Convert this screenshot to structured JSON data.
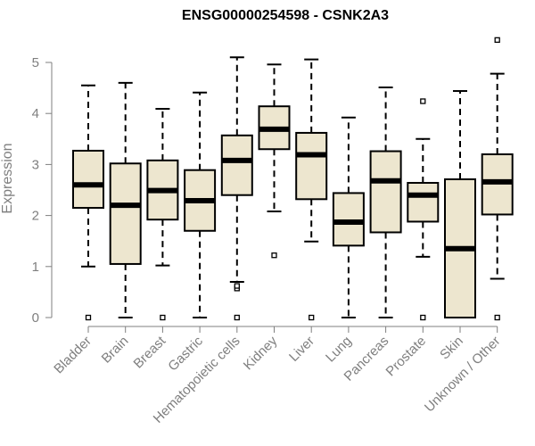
{
  "chart_data": {
    "type": "boxplot",
    "title": "ENSG00000254598 - CSNK2A3",
    "ylabel": "Expression",
    "xlabel": "",
    "ylim": [
      0,
      5.5
    ],
    "yticks": [
      0,
      1,
      2,
      3,
      4,
      5
    ],
    "box_fill": "#ede6cf",
    "box_stroke": "#000000",
    "categories": [
      "Bladder",
      "Brain",
      "Breast",
      "Gastric",
      "Hematopoietic cells",
      "Kidney",
      "Liver",
      "Lung",
      "Pancreas",
      "Prostate",
      "Skin",
      "Unknown / Other"
    ],
    "boxes": [
      {
        "whisker_low": 1.0,
        "q1": 2.15,
        "median": 2.6,
        "q3": 3.27,
        "whisker_high": 4.55,
        "outliers": [
          0
        ]
      },
      {
        "whisker_low": 0,
        "q1": 1.05,
        "median": 2.2,
        "q3": 3.02,
        "whisker_high": 4.6,
        "outliers": []
      },
      {
        "whisker_low": 1.02,
        "q1": 1.92,
        "median": 2.49,
        "q3": 3.08,
        "whisker_high": 4.09,
        "outliers": [
          0
        ]
      },
      {
        "whisker_low": 0,
        "q1": 1.7,
        "median": 2.29,
        "q3": 2.89,
        "whisker_high": 4.41,
        "outliers": []
      },
      {
        "whisker_low": 0.7,
        "q1": 2.4,
        "median": 3.08,
        "q3": 3.57,
        "whisker_high": 5.1,
        "outliers": [
          0.57,
          0.62,
          0
        ]
      },
      {
        "whisker_low": 2.08,
        "q1": 3.3,
        "median": 3.69,
        "q3": 4.14,
        "whisker_high": 4.96,
        "outliers": [
          1.22
        ]
      },
      {
        "whisker_low": 1.49,
        "q1": 2.32,
        "median": 3.19,
        "q3": 3.62,
        "whisker_high": 5.06,
        "outliers": [
          0
        ]
      },
      {
        "whisker_low": 0,
        "q1": 1.41,
        "median": 1.87,
        "q3": 2.44,
        "whisker_high": 3.92,
        "outliers": []
      },
      {
        "whisker_low": 0,
        "q1": 1.67,
        "median": 2.68,
        "q3": 3.26,
        "whisker_high": 4.51,
        "outliers": []
      },
      {
        "whisker_low": 1.19,
        "q1": 1.88,
        "median": 2.4,
        "q3": 2.64,
        "whisker_high": 3.5,
        "outliers": [
          4.24,
          0
        ]
      },
      {
        "whisker_low": 0,
        "q1": 0,
        "median": 1.35,
        "q3": 2.71,
        "whisker_high": 4.44,
        "outliers": []
      },
      {
        "whisker_low": 0.76,
        "q1": 2.02,
        "median": 2.66,
        "q3": 3.2,
        "whisker_high": 4.78,
        "outliers": [
          5.44,
          0
        ]
      }
    ]
  }
}
